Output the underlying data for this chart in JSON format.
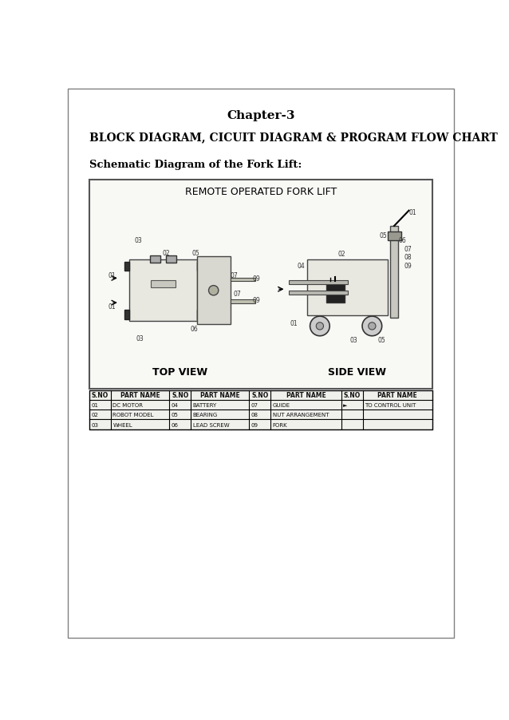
{
  "page_title": "Chapter-3",
  "section_title": "BLOCK DIAGRAM, CICUIT DIAGRAM & PROGRAM FLOW CHART",
  "subsection_title": "Schematic Diagram of the Fork Lift:",
  "diagram_title": "REMOTE OPERATED FORK LIFT",
  "top_view_label": "TOP VIEW",
  "side_view_label": "SIDE VIEW",
  "table_headers": [
    "S.NO",
    "PART NAME",
    "S.NO",
    "PART NAME",
    "S.NO",
    "PART NAME",
    "S.NO",
    "PART NAME"
  ],
  "table_rows": [
    [
      "01",
      "DC MOTOR",
      "04",
      "BATTERY",
      "07",
      "GUIDE",
      "►",
      "TO CONTROL UNIT"
    ],
    [
      "02",
      "ROBOT MODEL",
      "05",
      "BEARING",
      "08",
      "NUT ARRANGEMENT",
      "",
      ""
    ],
    [
      "03",
      "WHEEL",
      "06",
      "LEAD SCREW",
      "09",
      "FORK",
      "",
      ""
    ]
  ],
  "bg_color": "#ffffff",
  "text_color": "#000000",
  "border_color": "#808080",
  "diagram_bg": "#f5f5f0"
}
